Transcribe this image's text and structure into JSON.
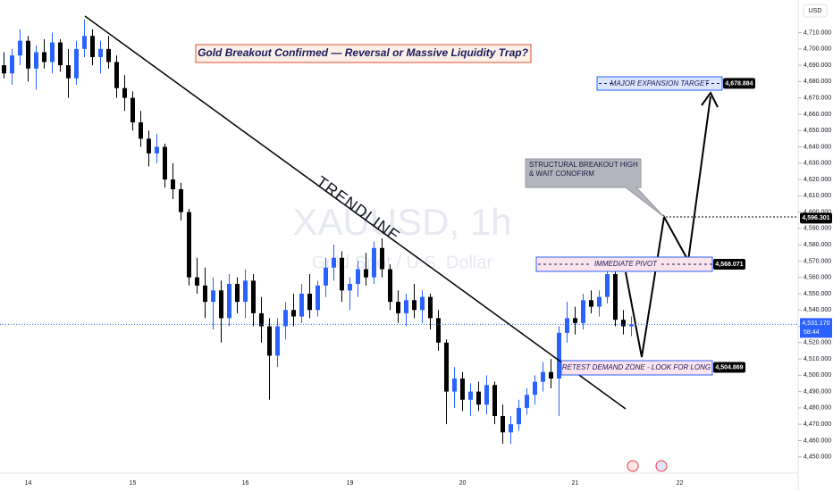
{
  "chart_data": {
    "type": "candlestick",
    "title": "Gold Breakout Confirmed — Reversal or Massive Liquidity Trap?",
    "watermark": "XAUUSD, 1h",
    "watermark_subtitle": "Gold Spot / U.S. Dollar",
    "currency": "USD",
    "annotations": {
      "trendline": "TRENDLINE",
      "target": "MAJOR EXPANSION TARGET",
      "pivot": "IMMEDIATE PIVOT",
      "demand": "RETEST DEMAND ZONE - LOOK FOR LONG",
      "callout": "STRUCTURAL BREAKOUT HIGH & WAIT CONOFIRM"
    },
    "price_labels": [
      {
        "value": 4678.884,
        "label": "4,678.884"
      },
      {
        "value": 4596.301,
        "label": "4,596.301"
      },
      {
        "value": 4568.071,
        "label": "4,568.071"
      },
      {
        "value": 4504.869,
        "label": "4,504.869"
      }
    ],
    "last_price": {
      "value": 4531.17,
      "label": "4,531.170"
    },
    "countdown": "58:44",
    "up_color": "#2962ff",
    "down_color": "#000000",
    "categories": [
      null,
      null,
      null,
      "14",
      null,
      null,
      null,
      null,
      null,
      null,
      null,
      null,
      null,
      null,
      null,
      null,
      "15",
      null,
      null,
      null,
      null,
      null,
      null,
      null,
      null,
      null,
      null,
      null,
      null,
      null,
      "16",
      null,
      null,
      null,
      null,
      null,
      null,
      null,
      null,
      null,
      null,
      null,
      null,
      "19",
      null,
      null,
      null,
      null,
      null,
      null,
      null,
      null,
      null,
      null,
      null,
      null,
      null,
      "20",
      null,
      null,
      null,
      null,
      null,
      null,
      null,
      null,
      null,
      null,
      null,
      null,
      null,
      "21",
      null,
      null,
      null,
      null,
      null,
      null,
      null,
      null,
      null,
      null,
      null,
      null,
      "22",
      null,
      null,
      null,
      null,
      null,
      null,
      null,
      null,
      null,
      null,
      null,
      null,
      null,
      null
    ],
    "open": [
      4690,
      4685,
      4696,
      4705,
      4688,
      4698,
      4692,
      4704,
      4690,
      4682,
      4700,
      4708,
      4695,
      4700,
      4692,
      4676,
      4670,
      4655,
      4645,
      4636,
      4640,
      4620,
      4614,
      4600,
      4560,
      4555,
      4545,
      4552,
      4535,
      4556,
      4545,
      4558,
      4538,
      4530,
      4512,
      4530,
      4540,
      4536,
      4550,
      4540,
      4555,
      4566,
      4572,
      4552,
      4556,
      4565,
      4560,
      4578,
      4565,
      4545,
      4538,
      4546,
      4540,
      4548,
      4535,
      4520,
      4490,
      4498,
      4485,
      4490,
      4482,
      4494,
      4475,
      4465,
      4470,
      4480,
      4488,
      4496,
      4502,
      4498,
      4526,
      4535,
      4532,
      4546,
      4542,
      4548,
      4562,
      4534,
      4530,
      null,
      null,
      null,
      null,
      null,
      null,
      null,
      null,
      null,
      null,
      null,
      null,
      null,
      null,
      null,
      null,
      null,
      null,
      null,
      null
    ],
    "high": [
      4698,
      4700,
      4712,
      4708,
      4702,
      4706,
      4710,
      4706,
      4700,
      4705,
      4718,
      4712,
      4705,
      4708,
      4696,
      4684,
      4674,
      4662,
      4650,
      4648,
      4642,
      4630,
      4618,
      4602,
      4572,
      4566,
      4560,
      4558,
      4562,
      4560,
      4565,
      4562,
      4548,
      4535,
      4535,
      4545,
      4550,
      4556,
      4562,
      4558,
      4572,
      4580,
      4576,
      4560,
      4570,
      4575,
      4582,
      4584,
      4568,
      4552,
      4550,
      4556,
      4552,
      4550,
      4540,
      4522,
      4505,
      4502,
      4495,
      4496,
      4500,
      4496,
      4482,
      4475,
      4485,
      4492,
      4500,
      4508,
      4510,
      4530,
      4545,
      4542,
      4550,
      4552,
      4552,
      4568,
      4564,
      4540,
      4536,
      null,
      null,
      null,
      null,
      null,
      null,
      null,
      null,
      null,
      null,
      null,
      null,
      null,
      null,
      null,
      null,
      null,
      null,
      null,
      null
    ],
    "low": [
      4682,
      4678,
      4690,
      4680,
      4675,
      4688,
      4685,
      4686,
      4670,
      4678,
      4695,
      4690,
      4685,
      4688,
      4670,
      4662,
      4650,
      4640,
      4628,
      4630,
      4615,
      4608,
      4595,
      4555,
      4550,
      4535,
      4528,
      4520,
      4530,
      4538,
      4535,
      4530,
      4520,
      4485,
      4505,
      4522,
      4530,
      4532,
      4535,
      4536,
      4548,
      4558,
      4545,
      4540,
      4548,
      4555,
      4556,
      4560,
      4540,
      4532,
      4530,
      4535,
      4532,
      4528,
      4515,
      4470,
      4480,
      4478,
      4475,
      4478,
      4476,
      4470,
      4458,
      4458,
      4466,
      4476,
      4482,
      4490,
      4492,
      4475,
      4520,
      4525,
      4528,
      4538,
      4536,
      4544,
      4530,
      4525,
      4524,
      null,
      null,
      null,
      null,
      null,
      null,
      null,
      null,
      null,
      null,
      null,
      null,
      null,
      null,
      null,
      null,
      null,
      null,
      null,
      null
    ],
    "close": [
      4685,
      4696,
      4705,
      4688,
      4698,
      4692,
      4704,
      4690,
      4682,
      4700,
      4708,
      4695,
      4700,
      4692,
      4676,
      4670,
      4655,
      4645,
      4636,
      4640,
      4620,
      4614,
      4600,
      4560,
      4555,
      4545,
      4552,
      4535,
      4556,
      4545,
      4558,
      4538,
      4530,
      4512,
      4530,
      4540,
      4536,
      4550,
      4540,
      4555,
      4566,
      4572,
      4552,
      4556,
      4565,
      4560,
      4578,
      4565,
      4545,
      4538,
      4546,
      4540,
      4548,
      4535,
      4520,
      4490,
      4498,
      4485,
      4490,
      4482,
      4494,
      4475,
      4465,
      4470,
      4480,
      4488,
      4496,
      4502,
      4498,
      4526,
      4535,
      4532,
      4546,
      4542,
      4548,
      4562,
      4534,
      4530,
      4531.17,
      null,
      null,
      null,
      null,
      null,
      null,
      null,
      null,
      null,
      null,
      null,
      null,
      null,
      null,
      null,
      null,
      null,
      null,
      null,
      null
    ],
    "ylim": [
      4440,
      4730
    ],
    "yticks": [
      {
        "value": 4450,
        "label": "4,450.000"
      },
      {
        "value": 4460,
        "label": "4,460.000"
      },
      {
        "value": 4470,
        "label": "4,470.000"
      },
      {
        "value": 4480,
        "label": "4,480.000"
      },
      {
        "value": 4490,
        "label": "4,490.000"
      },
      {
        "value": 4500,
        "label": "4,500.000"
      },
      {
        "value": 4510,
        "label": "4,510.000"
      },
      {
        "value": 4520,
        "label": "4,520.000"
      },
      {
        "value": 4530,
        "label": "4,530.000"
      },
      {
        "value": 4540,
        "label": "4,540.000"
      },
      {
        "value": 4550,
        "label": "4,550.000"
      },
      {
        "value": 4560,
        "label": "4,560.000"
      },
      {
        "value": 4570,
        "label": "4,570.000"
      },
      {
        "value": 4580,
        "label": "4,580.000"
      },
      {
        "value": 4590,
        "label": "4,590.000"
      },
      {
        "value": 4600,
        "label": "4,600.000"
      },
      {
        "value": 4610,
        "label": "4,610.000"
      },
      {
        "value": 4620,
        "label": "4,620.000"
      },
      {
        "value": 4630,
        "label": "4,630.000"
      },
      {
        "value": 4640,
        "label": "4,640.000"
      },
      {
        "value": 4650,
        "label": "4,650.000"
      },
      {
        "value": 4660,
        "label": "4,660.000"
      },
      {
        "value": 4670,
        "label": "4,670.000"
      },
      {
        "value": 4680,
        "label": "4,680.000"
      },
      {
        "value": 4690,
        "label": "4,690.000"
      },
      {
        "value": 4700,
        "label": "4,700.000"
      },
      {
        "value": 4710,
        "label": "4,710.000"
      }
    ],
    "grid": false
  }
}
